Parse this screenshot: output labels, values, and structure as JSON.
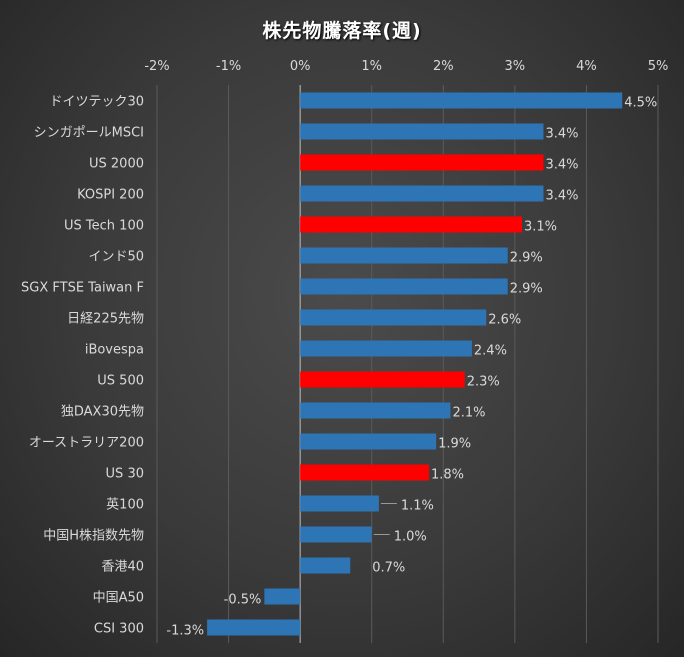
{
  "chart_data": {
    "type": "bar",
    "orientation": "horizontal",
    "title": "株先物騰落率(週)",
    "xlabel": "",
    "ylabel": "",
    "xlim": [
      -2,
      5
    ],
    "x_ticks": [
      "-2%",
      "-1%",
      "0%",
      "1%",
      "2%",
      "3%",
      "4%",
      "5%"
    ],
    "x_tick_values": [
      -2,
      -1,
      0,
      1,
      2,
      3,
      4,
      5
    ],
    "grid": true,
    "legend": "none",
    "categories": [
      "ドイツテック30",
      "シンガポールMSCI",
      "US 2000",
      "KOSPI 200",
      "US Tech 100",
      "インド50",
      "SGX FTSE Taiwan F",
      "日経225先物",
      "iBovespa",
      "US 500",
      "独DAX30先物",
      "オーストラリア200",
      "US 30",
      "英100",
      "中国H株指数先物",
      "香港40",
      "中国A50",
      "CSI 300"
    ],
    "values": [
      4.5,
      3.4,
      3.4,
      3.4,
      3.1,
      2.9,
      2.9,
      2.6,
      2.4,
      2.3,
      2.1,
      1.9,
      1.8,
      1.1,
      1.0,
      0.7,
      -0.5,
      -1.3
    ],
    "data_labels": [
      "4.5%",
      "3.4%",
      "3.4%",
      "3.4%",
      "3.1%",
      "2.9%",
      "2.9%",
      "2.6%",
      "2.4%",
      "2.3%",
      "2.1%",
      "1.9%",
      "1.8%",
      "1.1%",
      "1.0%",
      "0.7%",
      "-0.5%",
      "-1.3%"
    ],
    "highlighted": [
      false,
      false,
      true,
      false,
      true,
      false,
      false,
      false,
      false,
      true,
      false,
      false,
      true,
      false,
      false,
      false,
      false,
      false
    ],
    "colors": {
      "default": "#2e75b6",
      "highlight": "#ff0000",
      "background": "#3a3a3a",
      "text": "#d9d9d9",
      "grid": "#5a5a5a"
    }
  }
}
